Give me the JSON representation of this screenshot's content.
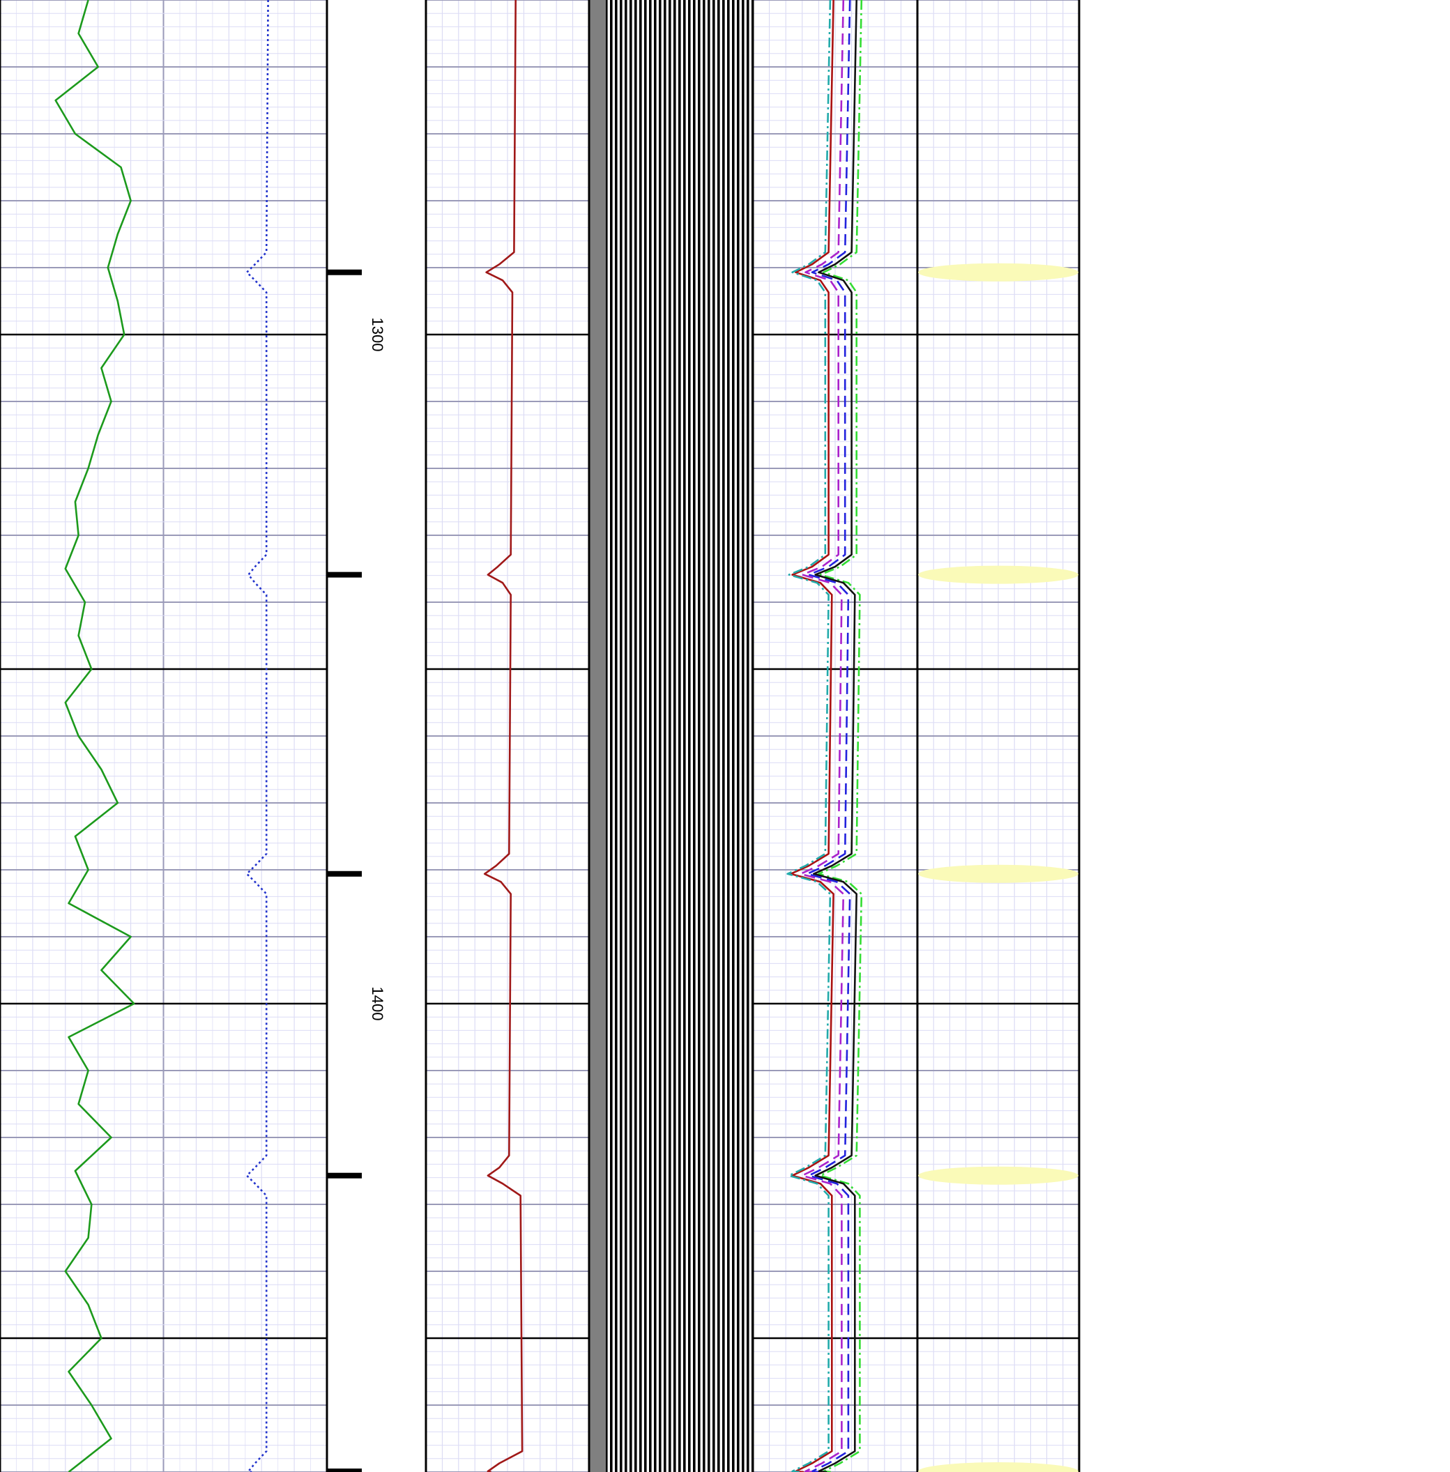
{
  "chart_data": {
    "type": "well-log",
    "ylim": [
      1250,
      1470
    ],
    "yticks": [
      1300,
      1400
    ],
    "major_grid": [
      1300,
      1350,
      1400,
      1450
    ],
    "grid_step": 10,
    "minor_grid_step": 2,
    "markers": [
      1290.7,
      1335.9,
      1380.6,
      1425.7,
      1469.9
    ],
    "marker_color": "#fafab8",
    "tracks": [
      {
        "xlim": [
          0,
          100
        ],
        "series": [
          {
            "color": "#1c9a1c",
            "dash": "solid",
            "depths": [
              1250,
              1255,
              1260,
              1265,
              1270,
              1275,
              1280,
              1285,
              1290,
              1295,
              1300,
              1305,
              1310,
              1315,
              1320,
              1325,
              1330,
              1335,
              1340,
              1345,
              1350,
              1355,
              1360,
              1365,
              1370,
              1375,
              1380,
              1385,
              1390,
              1395,
              1400,
              1405,
              1410,
              1415,
              1420,
              1425,
              1430,
              1435,
              1440,
              1445,
              1450,
              1455,
              1460,
              1465,
              1470
            ],
            "values": [
              27,
              24,
              30,
              17,
              23,
              37,
              40,
              36,
              33,
              36,
              38,
              31,
              34,
              30,
              27,
              23,
              24,
              20,
              26,
              24,
              28,
              20,
              24,
              31,
              36,
              23,
              27,
              21,
              40,
              31,
              41,
              21,
              27,
              24,
              34,
              23,
              28,
              27,
              20,
              27,
              31,
              21,
              28,
              34,
              21
            ]
          },
          {
            "color": "#2233cc",
            "dash": "dotted",
            "depths": [
              1250,
              1287.7,
              1289.5,
              1290.7,
              1291.9,
              1293.7,
              1332.9,
              1334.7,
              1335.9,
              1337.1,
              1338.9,
              1377.6,
              1379.4,
              1380.6,
              1381.8,
              1383.6,
              1422.7,
              1424.5,
              1425.7,
              1426.9,
              1428.7,
              1466.9,
              1468.7,
              1469.9,
              1470
            ],
            "values": [
              82,
              81.5,
              78,
              75.5,
              78,
              81.5,
              81.5,
              78,
              76,
              78,
              81.5,
              81.5,
              78,
              75.5,
              78,
              81.5,
              81.5,
              78,
              75.5,
              78,
              81.5,
              81.5,
              78,
              76,
              77
            ]
          }
        ]
      },
      {
        "xlim": [
          0,
          100
        ],
        "series": [
          {
            "color": "#a01818",
            "dash": "solid",
            "depths": [
              1250,
              1287.7,
              1289.5,
              1290.7,
              1291.9,
              1293.7,
              1332.9,
              1334.7,
              1335.9,
              1337.1,
              1338.9,
              1377.6,
              1379.4,
              1380.6,
              1381.8,
              1383.6,
              1422.7,
              1424.5,
              1425.7,
              1426.9,
              1428.7,
              1466.9,
              1468.7,
              1469.9,
              1470
            ],
            "values": [
              55,
              54,
              45,
              37,
              47,
              53,
              52,
              44,
              38,
              47,
              52,
              51,
              43,
              36,
              46,
              52,
              51,
              45,
              38,
              47,
              58,
              59,
              45,
              38,
              40
            ]
          }
        ]
      },
      {
        "xlim": [
          0,
          100
        ],
        "series": [
          {
            "color": "#33dd33",
            "dash": "dashdot",
            "depths": [
              1250,
              1287.7,
              1289.5,
              1290.7,
              1291.9,
              1293.7,
              1332.9,
              1334.7,
              1335.9,
              1337.1,
              1338.9,
              1377.6,
              1379.4,
              1380.6,
              1381.8,
              1383.6,
              1422.7,
              1424.5,
              1425.7,
              1426.9,
              1428.7,
              1466.9,
              1468.7,
              1469.9,
              1470
            ],
            "values": [
              66,
              63,
              53,
              43,
              58,
              63,
              63,
              53,
              41,
              58,
              65,
              63,
              51,
              40,
              58,
              66,
              63,
              51,
              41,
              58,
              65,
              65,
              53,
              43,
              48
            ]
          },
          {
            "color": "#111111",
            "dash": "solid",
            "depths": [
              1250,
              1287.7,
              1289.5,
              1290.7,
              1291.9,
              1293.7,
              1332.9,
              1334.7,
              1335.9,
              1337.1,
              1338.9,
              1377.6,
              1379.4,
              1380.6,
              1381.8,
              1383.6,
              1422.7,
              1424.5,
              1425.7,
              1426.9,
              1428.7,
              1466.9,
              1468.7,
              1469.9,
              1470
            ],
            "values": [
              63,
              60,
              50,
              40,
              55,
              60,
              60,
              50,
              38,
              55,
              62,
              60,
              48,
              37,
              55,
              63,
              60,
              48,
              38,
              55,
              62,
              62,
              50,
              40,
              45
            ]
          },
          {
            "color": "#2222dd",
            "dash": "dashed",
            "depths": [
              1250,
              1287.7,
              1289.5,
              1290.7,
              1291.9,
              1293.7,
              1332.9,
              1334.7,
              1335.9,
              1337.1,
              1338.9,
              1377.6,
              1379.4,
              1380.6,
              1381.8,
              1383.6,
              1422.7,
              1424.5,
              1425.7,
              1426.9,
              1428.7,
              1466.9,
              1468.7,
              1469.9,
              1470
            ],
            "values": [
              59,
              56,
              46,
              36,
              51,
              56,
              56,
              46,
              34,
              51,
              58,
              56,
              44,
              33,
              51,
              59,
              56,
              44,
              34,
              51,
              58,
              58,
              46,
              36,
              41
            ]
          },
          {
            "color": "#aa22cc",
            "dash": "dashed",
            "depths": [
              1250,
              1287.7,
              1289.5,
              1290.7,
              1291.9,
              1293.7,
              1332.9,
              1334.7,
              1335.9,
              1337.1,
              1338.9,
              1377.6,
              1379.4,
              1380.6,
              1381.8,
              1383.6,
              1422.7,
              1424.5,
              1425.7,
              1426.9,
              1428.7,
              1466.9,
              1468.7,
              1469.9,
              1470
            ],
            "values": [
              55,
              52,
              42,
              32,
              47,
              52,
              52,
              42,
              30,
              47,
              54,
              52,
              40,
              29,
              47,
              55,
              52,
              40,
              30,
              47,
              54,
              54,
              42,
              32,
              37
            ]
          },
          {
            "color": "#aa1111",
            "dash": "solid",
            "depths": [
              1250,
              1287.7,
              1289.5,
              1290.7,
              1291.9,
              1293.7,
              1332.9,
              1334.7,
              1335.9,
              1337.1,
              1338.9,
              1377.6,
              1379.4,
              1380.6,
              1381.8,
              1383.6,
              1422.7,
              1424.5,
              1425.7,
              1426.9,
              1428.7,
              1466.9,
              1468.7,
              1469.9,
              1470
            ],
            "values": [
              49,
              46,
              36,
              26,
              41,
              46,
              46,
              36,
              24,
              41,
              48,
              46,
              34,
              23,
              41,
              49,
              46,
              34,
              24,
              41,
              48,
              48,
              36,
              26,
              31
            ]
          },
          {
            "color": "#22aaaa",
            "dash": "dashdot",
            "depths": [
              1250,
              1287.7,
              1289.5,
              1290.7,
              1291.9,
              1293.7,
              1332.9,
              1334.7,
              1335.9,
              1337.1,
              1338.9,
              1377.6,
              1379.4,
              1380.6,
              1381.8,
              1383.6,
              1422.7,
              1424.5,
              1425.7,
              1426.9,
              1428.7,
              1466.9,
              1468.7,
              1469.9,
              1470
            ],
            "values": [
              47,
              44,
              34,
              24,
              39,
              44,
              44,
              34,
              22,
              39,
              46,
              44,
              32,
              21,
              39,
              47,
              44,
              32,
              22,
              39,
              46,
              46,
              34,
              24,
              29
            ]
          }
        ]
      }
    ]
  }
}
